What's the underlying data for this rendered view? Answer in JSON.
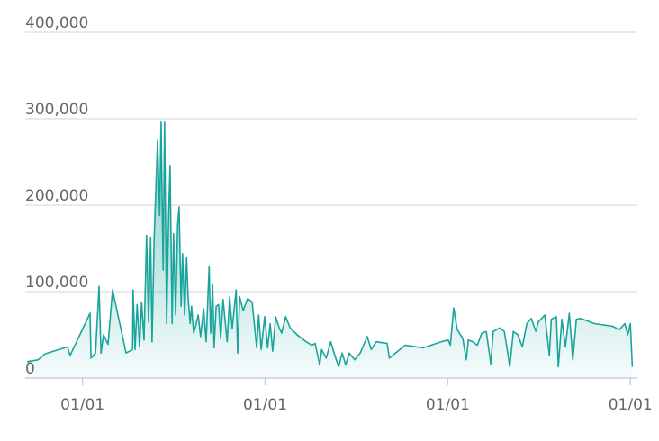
{
  "chart_data": {
    "type": "area",
    "color": "#19a59b",
    "x": [
      0,
      22,
      36,
      81,
      86,
      126,
      128,
      137,
      144,
      148,
      153,
      162,
      171,
      198,
      211,
      212,
      216,
      220,
      225,
      229,
      234,
      239,
      243,
      247,
      250,
      254,
      261,
      265,
      268,
      272,
      275,
      279,
      283,
      286,
      290,
      293,
      297,
      301,
      304,
      308,
      311,
      315,
      319,
      322,
      326,
      329,
      333,
      337,
      342,
      347,
      353,
      358,
      364,
      367,
      371,
      374,
      378,
      383,
      387,
      392,
      400,
      405,
      410,
      418,
      421,
      425,
      432,
      441,
      450,
      459,
      463,
      468,
      475,
      481,
      486,
      491,
      497,
      504,
      509,
      517,
      526,
      540,
      558,
      569,
      576,
      585,
      589,
      598,
      607,
      616,
      623,
      630,
      637,
      644,
      655,
      666,
      680,
      688,
      698,
      720,
      724,
      756,
      792,
      828,
      842,
      846,
      853,
      860,
      871,
      878,
      882,
      891,
      900,
      909,
      918,
      927,
      932,
      945,
      954,
      965,
      972,
      981,
      990,
      999,
      1008,
      1017,
      1022,
      1035,
      1044,
      1048,
      1058,
      1062,
      1069,
      1076,
      1084,
      1091,
      1098,
      1107,
      1134,
      1170,
      1184,
      1195,
      1201,
      1206,
      1210
    ],
    "values": [
      19000,
      21000,
      28000,
      36000,
      26000,
      75000,
      23000,
      29000,
      106000,
      29000,
      50000,
      39000,
      102000,
      29000,
      33000,
      102000,
      33000,
      85000,
      36000,
      88000,
      44000,
      165000,
      65000,
      163000,
      42000,
      160000,
      275000,
      188000,
      296000,
      125000,
      296000,
      63000,
      188000,
      246000,
      63000,
      167000,
      73000,
      177000,
      198000,
      83000,
      144000,
      73000,
      140000,
      94000,
      63000,
      83000,
      52000,
      60000,
      73000,
      48000,
      80000,
      42000,
      129000,
      52000,
      108000,
      35000,
      83000,
      85000,
      46000,
      91000,
      42000,
      94000,
      57000,
      102000,
      29000,
      94000,
      78000,
      92000,
      88000,
      35000,
      73000,
      33000,
      71000,
      35000,
      63000,
      31000,
      71000,
      58000,
      52000,
      71000,
      58000,
      50000,
      42000,
      38000,
      40000,
      15000,
      33000,
      23000,
      42000,
      25000,
      13000,
      29000,
      15000,
      29000,
      21000,
      29000,
      48000,
      33000,
      42000,
      40000,
      23000,
      38000,
      35000,
      42000,
      44000,
      38000,
      81000,
      56000,
      46000,
      21000,
      44000,
      42000,
      38000,
      52000,
      54000,
      16000,
      54000,
      58000,
      54000,
      13000,
      54000,
      50000,
      36000,
      63000,
      69000,
      54000,
      65000,
      73000,
      26000,
      68000,
      71000,
      13000,
      68000,
      36000,
      75000,
      21000,
      68000,
      69000,
      63000,
      60000,
      56000,
      63000,
      50000,
      63000,
      13000
    ],
    "xlim": [
      0,
      1220
    ],
    "xticks": [
      {
        "value": 111,
        "label": "01/01"
      },
      {
        "value": 476,
        "label": "01/01"
      },
      {
        "value": 841,
        "label": "01/01"
      },
      {
        "value": 1206,
        "label": "01/01"
      }
    ],
    "ylim": [
      0,
      400000
    ],
    "yticks": [
      0,
      {
        "value": 100000,
        "label": "100,000"
      },
      {
        "value": 200000,
        "label": "200,000"
      },
      {
        "value": 300000,
        "label": "300,000"
      },
      {
        "value": 400000,
        "label": "400,000"
      }
    ],
    "grid": true
  }
}
